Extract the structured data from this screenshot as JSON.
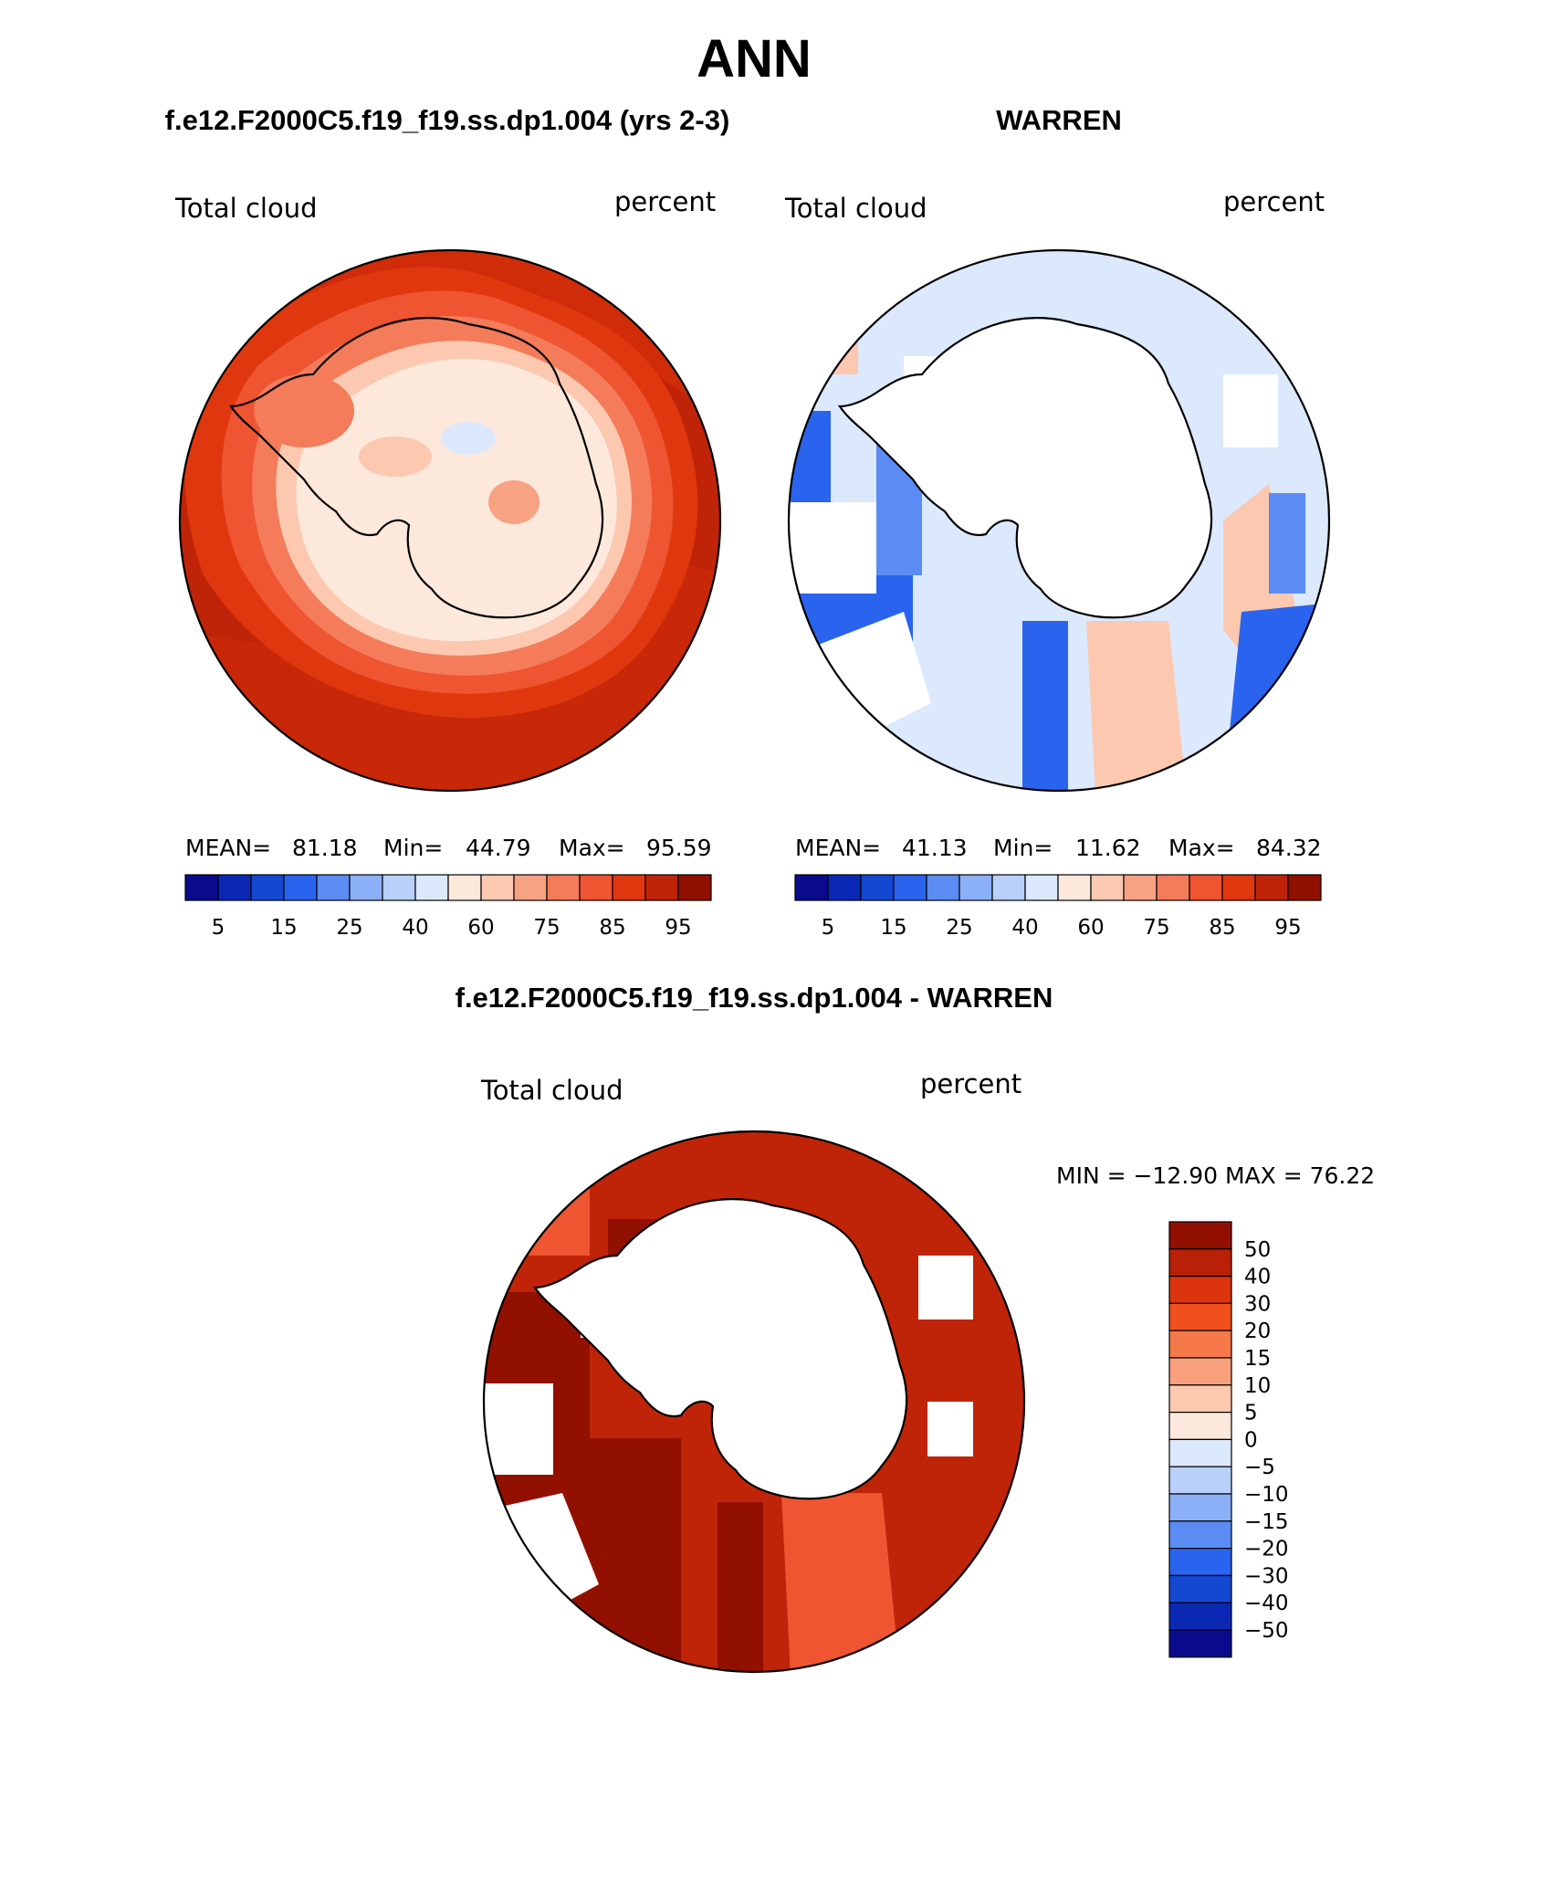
{
  "page": {
    "title": "ANN",
    "difference_title": "f.e12.F2000C5.f19_f19.ss.dp1.004 - WARREN"
  },
  "panels": [
    {
      "name": "model",
      "title": "f.e12.F2000C5.f19_f19.ss.dp1.004 (yrs 2-3)",
      "variable": "Total cloud",
      "units": "percent",
      "stats": {
        "mean_label": "MEAN=",
        "mean": "81.18",
        "min_label": "Min=",
        "min": "44.79",
        "max_label": "Max=",
        "max": "95.59"
      }
    },
    {
      "name": "obs",
      "title": "WARREN",
      "variable": "Total cloud",
      "units": "percent",
      "stats": {
        "mean_label": "MEAN=",
        "mean": "41.13",
        "min_label": "Min=",
        "min": "11.62",
        "max_label": "Max=",
        "max": "84.32"
      }
    },
    {
      "name": "diff",
      "variable": "Total cloud",
      "units": "percent",
      "minmax": "MIN = −12.90 MAX =   76.22"
    }
  ],
  "abs_colorbar": {
    "colors": [
      "#0a0a8c",
      "#0a28b4",
      "#1448d2",
      "#2a64ee",
      "#5a8cf4",
      "#8cb0f8",
      "#b8d0fa",
      "#dce8fc",
      "#fde8dc",
      "#fcc8b0",
      "#f8a284",
      "#f47c5a",
      "#ee5530",
      "#e0380e",
      "#c02408",
      "#921000"
    ],
    "ticks": [
      "5",
      "15",
      "25",
      "40",
      "60",
      "75",
      "85",
      "95"
    ]
  },
  "diff_colorbar": {
    "colors_top_to_bottom": [
      "#921000",
      "#b82008",
      "#dc340c",
      "#f0501c",
      "#f47848",
      "#f8a07c",
      "#fcc8ae",
      "#fde8dc",
      "#dce8fc",
      "#b8d0fa",
      "#8cb0f8",
      "#5a8cf4",
      "#2a64ee",
      "#1448d2",
      "#0a28b4",
      "#0a0a8c"
    ],
    "labels_top_to_bottom": [
      "50",
      "40",
      "30",
      "20",
      "15",
      "10",
      "5",
      "0",
      "−5",
      "−10",
      "−15",
      "−20",
      "−30",
      "−40",
      "−50"
    ]
  },
  "colors": {
    "model_ocean": "#c02408",
    "model_ocean_light": "#e0380e",
    "model_ice": "#fde8dc",
    "model_ice_mid": "#fcc8b0",
    "obs_ocean": "#dce8fc",
    "obs_blue": "#2a64ee",
    "obs_blue_mid": "#5a8cf4",
    "obs_pink": "#fcc8b0",
    "diff_dark": "#921000",
    "diff_mid": "#c02408",
    "diff_light": "#ee5530"
  }
}
